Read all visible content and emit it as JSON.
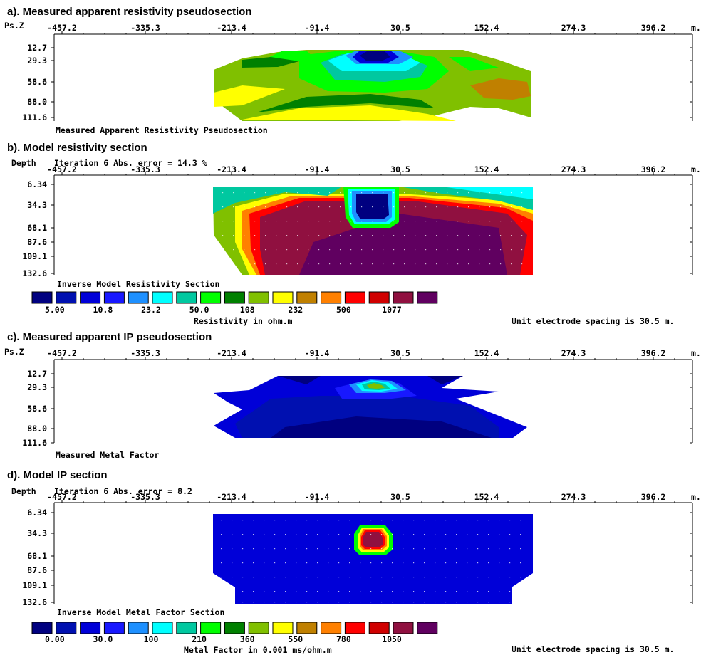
{
  "panels": [
    {
      "key": "a",
      "title": "a). Measured apparent resistivity pseudosection",
      "axis_left": "Ps.Z",
      "axis_unit": "m.",
      "x_ticks": [
        "-457.2",
        "-335.3",
        "-213.4",
        "-91.4",
        "30.5",
        "152.4",
        "274.3",
        "396.2"
      ],
      "depth_ticks": [
        "12.7",
        "29.3",
        "58.6",
        "88.0",
        "111.6"
      ],
      "caption": "Measured Apparent Resistivity Pseudosection"
    },
    {
      "key": "b",
      "title": "b). Model resistivity section",
      "axis_left": "Depth",
      "iteration": "Iteration 6 Abs. error = 14.3 %",
      "axis_unit": "m.",
      "x_ticks": [
        "-457.2",
        "-335.3",
        "-213.4",
        "-91.4",
        "30.5",
        "152.4",
        "274.3",
        "396.2"
      ],
      "depth_ticks": [
        "6.34",
        "34.3",
        "68.1",
        "87.6",
        "109.1",
        "132.6"
      ],
      "caption": "Inverse Model Resistivity Section"
    },
    {
      "key": "c",
      "title": "c). Measured apparent IP pseudosection",
      "axis_left": "Ps.Z",
      "axis_unit": "m.",
      "x_ticks": [
        "-457.2",
        "-335.3",
        "-213.4",
        "-91.4",
        "30.5",
        "152.4",
        "274.3",
        "396.2"
      ],
      "depth_ticks": [
        "12.7",
        "29.3",
        "58.6",
        "88.0",
        "111.6"
      ],
      "caption": "Measured Metal Factor"
    },
    {
      "key": "d",
      "title": "d). Model IP section",
      "axis_left": "Depth",
      "iteration": "Iteration 6 Abs. error = 8.2",
      "axis_unit": "m.",
      "x_ticks": [
        "-457.2",
        "-335.3",
        "-213.4",
        "-91.4",
        "30.5",
        "152.4",
        "274.3",
        "396.2"
      ],
      "depth_ticks": [
        "6.34",
        "34.3",
        "68.1",
        "87.6",
        "109.1",
        "132.6"
      ],
      "caption": "Inverse Model Metal Factor Section"
    }
  ],
  "legends": {
    "resistivity": {
      "colors": [
        "#000080",
        "#0010b0",
        "#0000d8",
        "#1818ff",
        "#1e90ff",
        "#00ffff",
        "#00c8a0",
        "#00ff00",
        "#008000",
        "#80c000",
        "#ffff00",
        "#c08000",
        "#ff8000",
        "#ff0000",
        "#d00000",
        "#901040",
        "#600060"
      ],
      "labels": [
        "5.00",
        "10.8",
        "23.2",
        "50.0",
        "108",
        "232",
        "500",
        "1077"
      ],
      "title": "Resistivity in ohm.m",
      "note": "Unit electrode spacing is 30.5 m."
    },
    "metal_factor": {
      "colors": [
        "#000080",
        "#0010b0",
        "#0000d8",
        "#1818ff",
        "#1e90ff",
        "#00ffff",
        "#00c8a0",
        "#00ff00",
        "#008000",
        "#80c000",
        "#ffff00",
        "#c08000",
        "#ff8000",
        "#ff0000",
        "#d00000",
        "#901040",
        "#600060"
      ],
      "labels": [
        "0.00",
        "30.0",
        "100",
        "210",
        "360",
        "550",
        "780",
        "1050"
      ],
      "title": "Metal Factor in 0.001 ms/ohm.m",
      "note": "Unit electrode spacing is 30.5 m."
    }
  },
  "chart_data": [
    {
      "type": "heatmap",
      "title": "a). Measured apparent resistivity pseudosection",
      "x_ticks": [
        -457.2,
        -335.3,
        -213.4,
        -91.4,
        30.5,
        152.4,
        274.3,
        396.2
      ],
      "y_ticks": [
        12.7,
        29.3,
        58.6,
        88.0,
        111.6
      ],
      "xlabel": "m.",
      "ylabel": "Ps.Z"
    },
    {
      "type": "heatmap",
      "title": "b). Model resistivity section",
      "x_ticks": [
        -457.2,
        -335.3,
        -213.4,
        -91.4,
        30.5,
        152.4,
        274.3,
        396.2
      ],
      "y_ticks": [
        6.34,
        34.3,
        68.1,
        87.6,
        109.1,
        132.6
      ],
      "xlabel": "m.",
      "ylabel": "Depth",
      "iteration": 6,
      "abs_error_percent": 14.3,
      "colorbar_levels": [
        5.0,
        10.8,
        23.2,
        50.0,
        108,
        232,
        500,
        1077
      ]
    },
    {
      "type": "heatmap",
      "title": "c). Measured apparent IP pseudosection",
      "x_ticks": [
        -457.2,
        -335.3,
        -213.4,
        -91.4,
        30.5,
        152.4,
        274.3,
        396.2
      ],
      "y_ticks": [
        12.7,
        29.3,
        58.6,
        88.0,
        111.6
      ],
      "xlabel": "m.",
      "ylabel": "Ps.Z"
    },
    {
      "type": "heatmap",
      "title": "d). Model IP section",
      "x_ticks": [
        -457.2,
        -335.3,
        -213.4,
        -91.4,
        30.5,
        152.4,
        274.3,
        396.2
      ],
      "y_ticks": [
        6.34,
        34.3,
        68.1,
        87.6,
        109.1,
        132.6
      ],
      "xlabel": "m.",
      "ylabel": "Depth",
      "iteration": 6,
      "abs_error": 8.2,
      "colorbar_levels": [
        0.0,
        30.0,
        100,
        210,
        360,
        550,
        780,
        1050
      ]
    }
  ]
}
